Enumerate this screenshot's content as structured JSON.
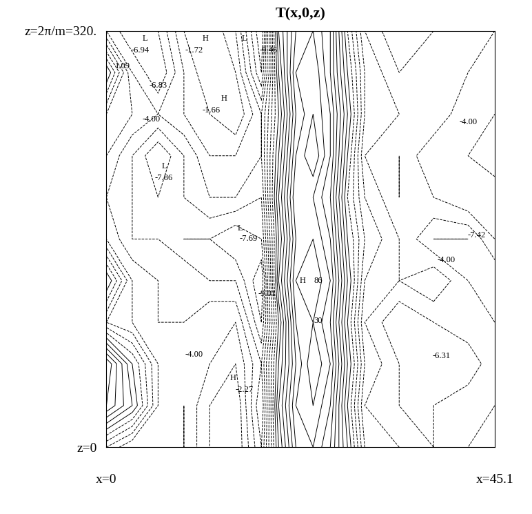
{
  "chart_data": {
    "type": "contour",
    "title": "T(x,0,z)",
    "x": [
      0,
      3,
      6,
      9,
      12,
      15,
      18,
      20,
      22,
      24,
      26,
      28,
      30,
      34,
      38,
      42,
      45.1
    ],
    "y": [
      0,
      32,
      64,
      96,
      128,
      160,
      192,
      224,
      256,
      288,
      320
    ],
    "cells": [
      [
        -3,
        -5,
        -4,
        -5,
        -3,
        -2,
        -6,
        1,
        6,
        7,
        5,
        1,
        -4,
        -5,
        -6,
        -5,
        -4
      ],
      [
        4,
        1,
        -4,
        -5,
        -3,
        -2,
        -7,
        2,
        7,
        8,
        6,
        0,
        -5,
        -6,
        -6,
        -5,
        -5
      ],
      [
        5,
        0,
        -4,
        -4,
        -4,
        -3,
        -6,
        1,
        6,
        9,
        7,
        1,
        -4,
        -6,
        -6,
        -7,
        -5
      ],
      [
        -3,
        -4,
        -5,
        -5,
        -4,
        -4,
        -8,
        0,
        7,
        8,
        6,
        0,
        -5,
        -7,
        -6,
        -5,
        -6
      ],
      [
        1,
        -4,
        -5,
        -5,
        -6,
        -6,
        -9,
        2,
        8,
        9,
        7,
        1,
        -4,
        -5,
        -4,
        -6,
        -7
      ],
      [
        -4,
        -6,
        -6,
        -7,
        -7,
        -8,
        -7,
        1,
        7,
        8,
        6,
        0,
        -3,
        -5,
        -7,
        -7,
        -5
      ],
      [
        -5,
        -6,
        -7,
        -6,
        -5,
        -5,
        -6,
        2,
        8,
        7,
        5,
        -1,
        -4,
        -6,
        -5,
        -4,
        -4
      ],
      [
        -4,
        -6,
        -8,
        -6,
        -4,
        -4,
        -5,
        1,
        7,
        9,
        6,
        0,
        -5,
        -6,
        -4,
        -5,
        -6
      ],
      [
        -3,
        -4,
        -5,
        -4,
        -3,
        -2,
        -5,
        0,
        6,
        8,
        6,
        1,
        -4,
        -5,
        -6,
        -4,
        -5
      ],
      [
        1,
        -5,
        -7,
        -4,
        -2,
        -3,
        -8,
        1,
        7,
        8,
        5,
        0,
        -4,
        -6,
        -5,
        -5,
        -4
      ],
      [
        -5,
        -7,
        -6,
        -3,
        -2,
        -4,
        -9,
        2,
        6,
        7,
        5,
        -1,
        -5,
        -7,
        -6,
        -5,
        -5
      ]
    ],
    "levels": [
      -9,
      -8,
      -7,
      -6,
      -5,
      -4,
      -3,
      -2,
      -1,
      0,
      1,
      2,
      3,
      4,
      5,
      6,
      7,
      8,
      9
    ],
    "color": "#000000",
    "xlim": [
      0,
      45.1
    ],
    "ylim": [
      0,
      320
    ],
    "xticks": [
      {
        "value": 0,
        "label": "x=0"
      },
      {
        "value": 45.1,
        "label": "x=45.1"
      }
    ],
    "yticks": [
      {
        "value": 0,
        "label": "z=0"
      },
      {
        "value": 320,
        "label": "z=2π/m=320."
      }
    ],
    "annotations": [
      {
        "x": 4.5,
        "y": 314,
        "text": "L"
      },
      {
        "x": 11.5,
        "y": 314,
        "text": "H"
      },
      {
        "x": 16.0,
        "y": 314,
        "text": "L"
      },
      {
        "x": 3.9,
        "y": 305,
        "text": "-6.94"
      },
      {
        "x": 10.2,
        "y": 305,
        "text": "-1.72"
      },
      {
        "x": 18.8,
        "y": 305,
        "text": "-9.46"
      },
      {
        "x": 1.9,
        "y": 293,
        "text": "1.09"
      },
      {
        "x": 6.0,
        "y": 278,
        "text": "-6.83"
      },
      {
        "x": 13.7,
        "y": 268,
        "text": "H"
      },
      {
        "x": 12.2,
        "y": 259,
        "text": "-1.66"
      },
      {
        "x": 5.2,
        "y": 252,
        "text": "-4.00"
      },
      {
        "x": 42.0,
        "y": 250,
        "text": "-4.00"
      },
      {
        "x": 6.7,
        "y": 216,
        "text": "L"
      },
      {
        "x": 6.7,
        "y": 207,
        "text": "-7.86"
      },
      {
        "x": 15.5,
        "y": 168,
        "text": "L"
      },
      {
        "x": 16.5,
        "y": 160,
        "text": "-7.69"
      },
      {
        "x": 43.0,
        "y": 163,
        "text": "-7.42"
      },
      {
        "x": 39.5,
        "y": 144,
        "text": "-4.00"
      },
      {
        "x": 22.8,
        "y": 128,
        "text": "H"
      },
      {
        "x": 24.6,
        "y": 128,
        "text": "86"
      },
      {
        "x": 18.7,
        "y": 118,
        "text": "-9.01"
      },
      {
        "x": 24.6,
        "y": 97,
        "text": "30"
      },
      {
        "x": 10.2,
        "y": 71,
        "text": "-4.00"
      },
      {
        "x": 38.9,
        "y": 70,
        "text": "-6.31"
      },
      {
        "x": 14.7,
        "y": 53,
        "text": "H"
      },
      {
        "x": 16.0,
        "y": 44,
        "text": "-2.27"
      }
    ]
  }
}
